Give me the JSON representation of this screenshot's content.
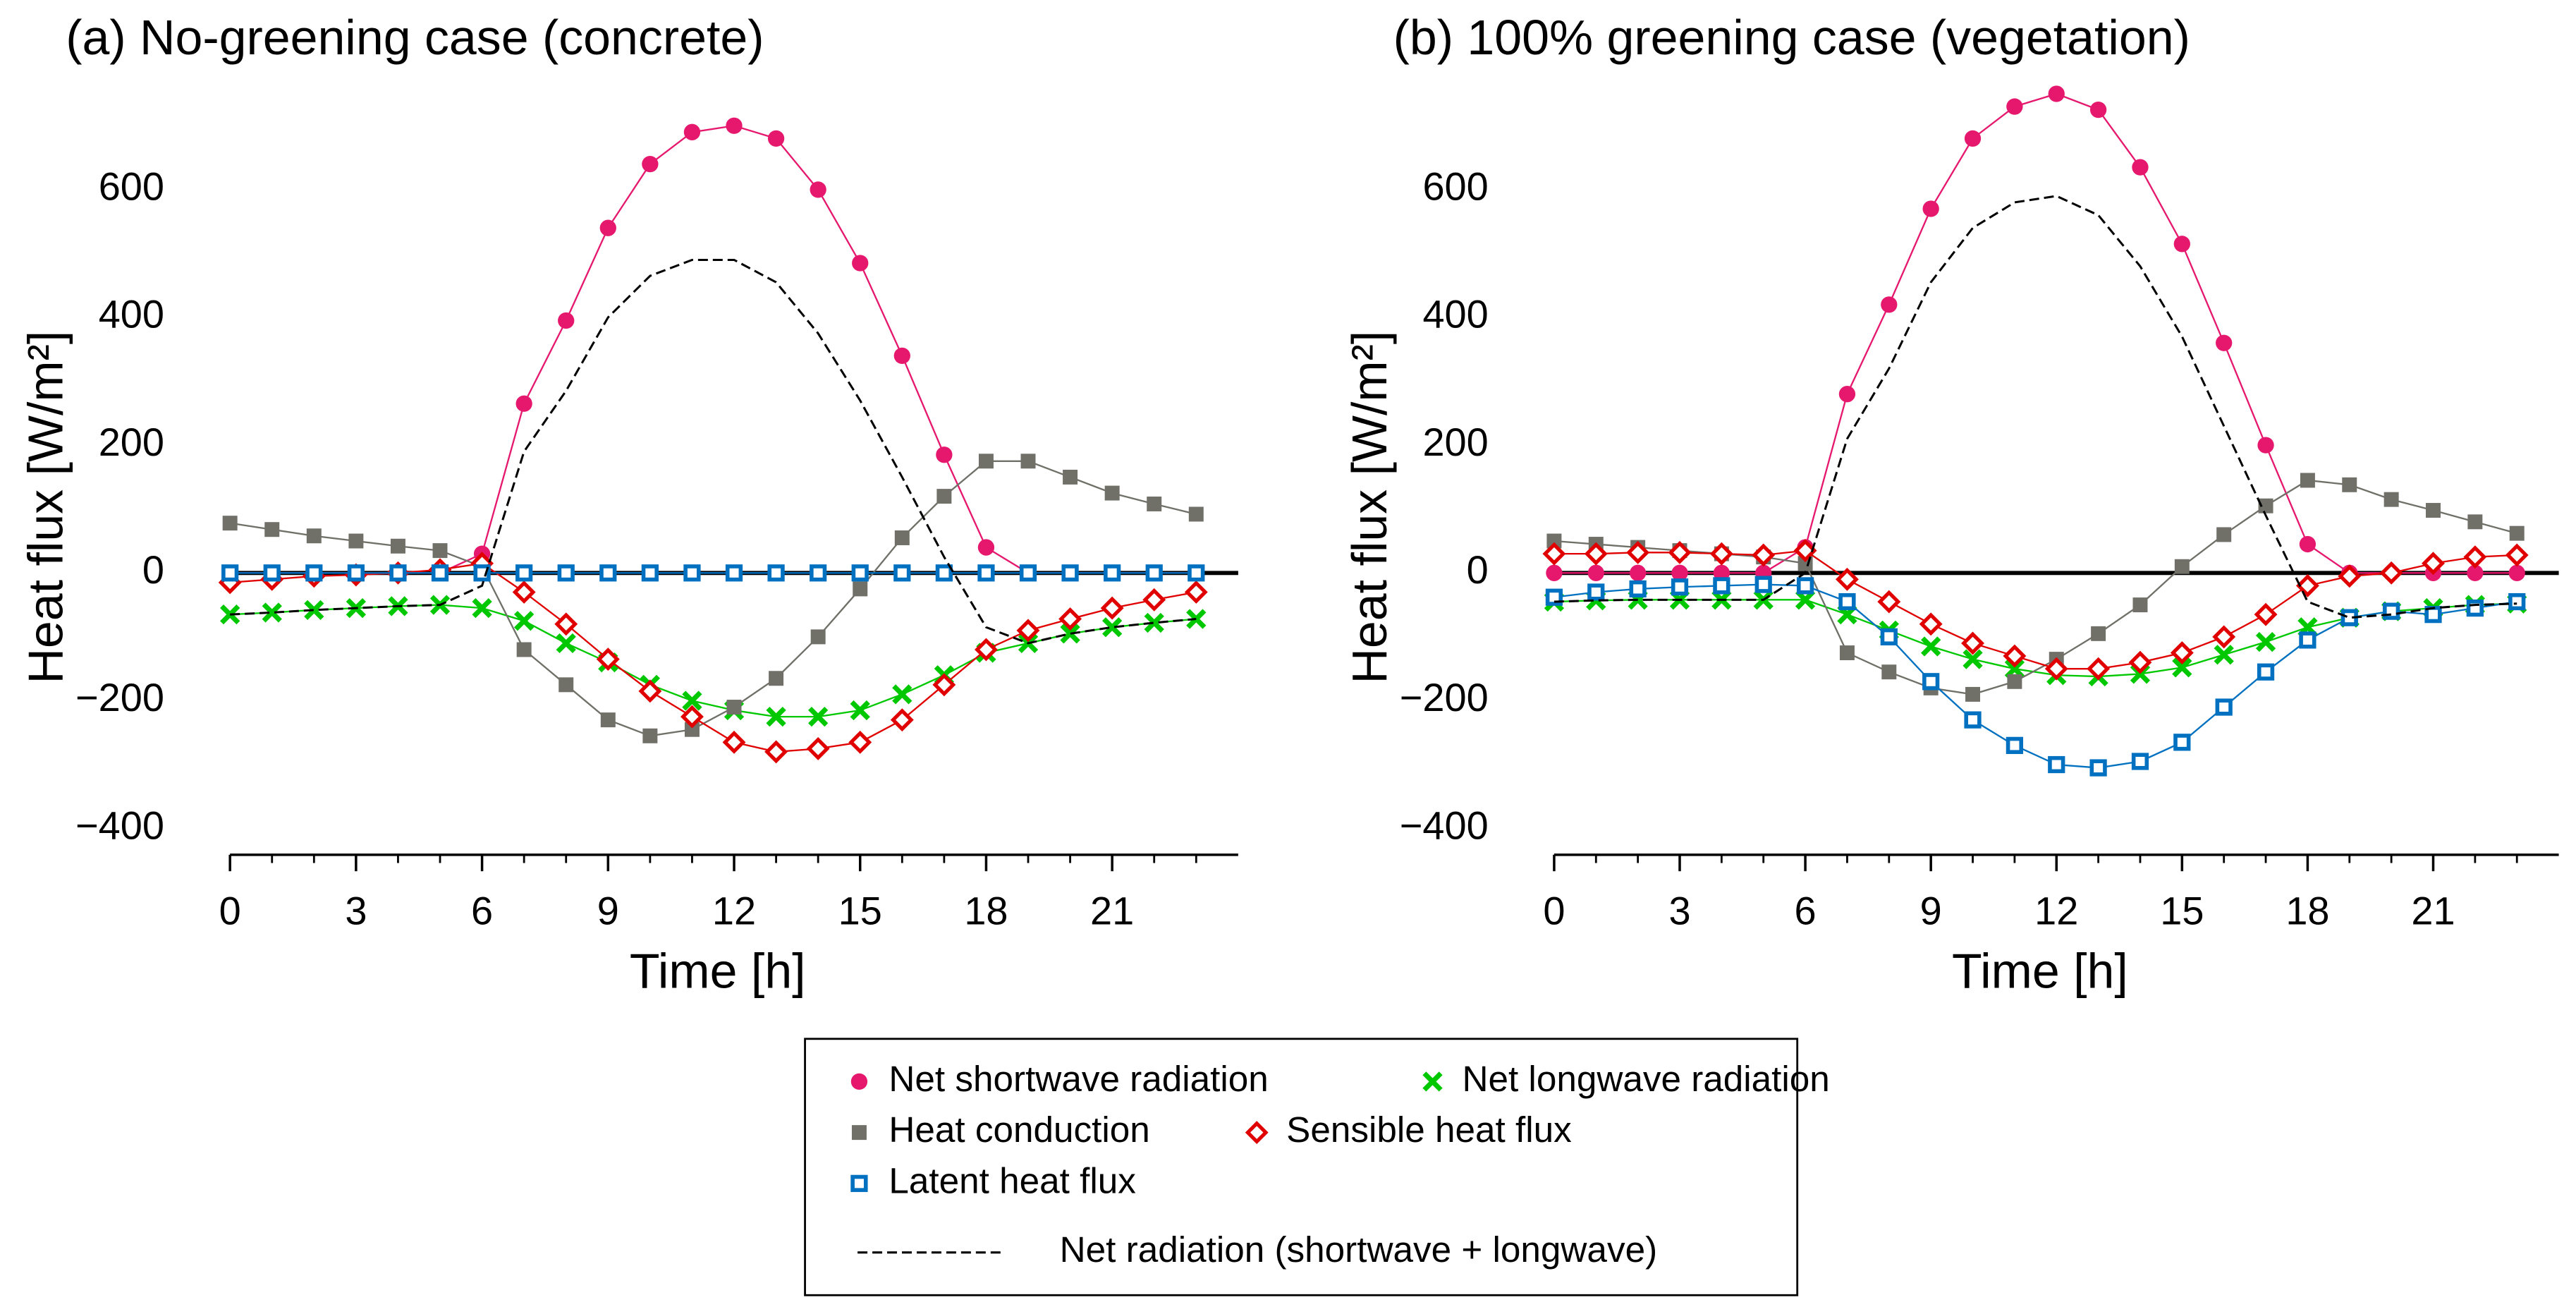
{
  "chart_data": [
    {
      "type": "line",
      "title": "(a) No-greening case (concrete)",
      "x_label": "Time [h]",
      "y_label": "Heat flux [W/m²]",
      "x": [
        0,
        1,
        2,
        3,
        4,
        5,
        6,
        7,
        8,
        9,
        10,
        11,
        12,
        13,
        14,
        15,
        16,
        17,
        18,
        19,
        20,
        21,
        22,
        23
      ],
      "xlim": [
        0,
        24
      ],
      "xticks": [
        0,
        3,
        6,
        9,
        12,
        15,
        18,
        21
      ],
      "ylim": [
        -400,
        760
      ],
      "yticks": [
        {
          "value": -400,
          "label": "−400"
        },
        {
          "value": -200,
          "label": "−200"
        },
        0,
        200,
        400,
        600
      ],
      "series": [
        {
          "name": "Net shortwave radiation",
          "color": "#e6186e",
          "marker": "circle",
          "values": [
            0,
            0,
            0,
            0,
            0,
            0,
            30,
            265,
            395,
            540,
            640,
            690,
            700,
            680,
            600,
            485,
            340,
            185,
            40,
            0,
            0,
            0,
            0,
            0
          ]
        },
        {
          "name": "Net longwave radiation",
          "color": "#00c800",
          "marker": "x",
          "values": [
            -65,
            -62,
            -58,
            -55,
            -52,
            -50,
            -55,
            -75,
            -110,
            -140,
            -175,
            -200,
            -215,
            -225,
            -225,
            -215,
            -190,
            -160,
            -125,
            -110,
            -95,
            -85,
            -78,
            -72
          ]
        },
        {
          "name": "Heat conduction",
          "color": "#707068",
          "marker": "square",
          "values": [
            78,
            68,
            58,
            50,
            42,
            35,
            10,
            -120,
            -175,
            -230,
            -255,
            -245,
            -210,
            -165,
            -100,
            -25,
            55,
            120,
            175,
            175,
            150,
            125,
            108,
            92
          ]
        },
        {
          "name": "Sensible heat flux",
          "color": "#e00000",
          "marker": "diamond",
          "values": [
            -15,
            -10,
            -5,
            -3,
            0,
            5,
            15,
            -30,
            -80,
            -135,
            -185,
            -225,
            -265,
            -280,
            -275,
            -265,
            -230,
            -175,
            -120,
            -90,
            -72,
            -55,
            -42,
            -30
          ]
        },
        {
          "name": "Latent heat flux",
          "color": "#0070c0",
          "marker": "open-square",
          "values": [
            0,
            0,
            0,
            0,
            0,
            0,
            0,
            0,
            0,
            0,
            0,
            0,
            0,
            0,
            0,
            0,
            0,
            0,
            0,
            0,
            0,
            0,
            0,
            0
          ]
        },
        {
          "name": "Net radiation (shortwave + longwave)",
          "color": "#000000",
          "marker": "dash",
          "values": [
            -65,
            -62,
            -58,
            -55,
            -52,
            -50,
            -20,
            190,
            285,
            400,
            465,
            490,
            490,
            455,
            375,
            270,
            150,
            25,
            -85,
            -110,
            -95,
            -85,
            -78,
            -72
          ]
        }
      ]
    },
    {
      "type": "line",
      "title": "(b) 100% greening case (vegetation)",
      "x_label": "Time [h]",
      "y_label": "Heat flux [W/m²]",
      "x": [
        0,
        1,
        2,
        3,
        4,
        5,
        6,
        7,
        8,
        9,
        10,
        11,
        12,
        13,
        14,
        15,
        16,
        17,
        18,
        19,
        20,
        21,
        22,
        23
      ],
      "xlim": [
        0,
        24
      ],
      "xticks": [
        0,
        3,
        6,
        9,
        12,
        15,
        18,
        21
      ],
      "ylim": [
        -400,
        760
      ],
      "yticks": [
        {
          "value": -400,
          "label": "−400"
        },
        {
          "value": -200,
          "label": "−200"
        },
        0,
        200,
        400,
        600
      ],
      "series": [
        {
          "color": "#e6186e",
          "marker": "circle",
          "values": [
            0,
            0,
            0,
            0,
            0,
            0,
            40,
            280,
            420,
            570,
            680,
            730,
            750,
            725,
            635,
            515,
            360,
            200,
            45,
            0,
            0,
            0,
            0,
            0
          ]
        },
        {
          "color": "#00c800",
          "marker": "x",
          "values": [
            -45,
            -43,
            -42,
            -42,
            -42,
            -42,
            -42,
            -65,
            -90,
            -115,
            -135,
            -150,
            -160,
            -162,
            -158,
            -148,
            -128,
            -108,
            -85,
            -70,
            -60,
            -55,
            -50,
            -48
          ]
        },
        {
          "color": "#707068",
          "marker": "square",
          "values": [
            50,
            45,
            40,
            35,
            30,
            25,
            15,
            -125,
            -155,
            -180,
            -190,
            -170,
            -135,
            -95,
            -50,
            10,
            60,
            105,
            145,
            138,
            115,
            98,
            80,
            62
          ]
        },
        {
          "color": "#e00000",
          "marker": "diamond",
          "values": [
            30,
            30,
            32,
            32,
            30,
            28,
            35,
            -10,
            -45,
            -80,
            -110,
            -130,
            -150,
            -150,
            -140,
            -125,
            -100,
            -65,
            -20,
            -5,
            0,
            15,
            25,
            28
          ]
        },
        {
          "color": "#0070c0",
          "marker": "open-square",
          "values": [
            -38,
            -30,
            -25,
            -22,
            -20,
            -18,
            -20,
            -45,
            -100,
            -170,
            -230,
            -270,
            -300,
            -305,
            -295,
            -265,
            -210,
            -155,
            -105,
            -70,
            -60,
            -65,
            -55,
            -45
          ]
        },
        {
          "color": "#000000",
          "marker": "dash",
          "values": [
            -45,
            -43,
            -42,
            -42,
            -42,
            -42,
            0,
            210,
            320,
            455,
            540,
            580,
            590,
            560,
            480,
            370,
            230,
            90,
            -45,
            -70,
            -65,
            -55,
            -50,
            -48
          ]
        }
      ]
    }
  ]
}
